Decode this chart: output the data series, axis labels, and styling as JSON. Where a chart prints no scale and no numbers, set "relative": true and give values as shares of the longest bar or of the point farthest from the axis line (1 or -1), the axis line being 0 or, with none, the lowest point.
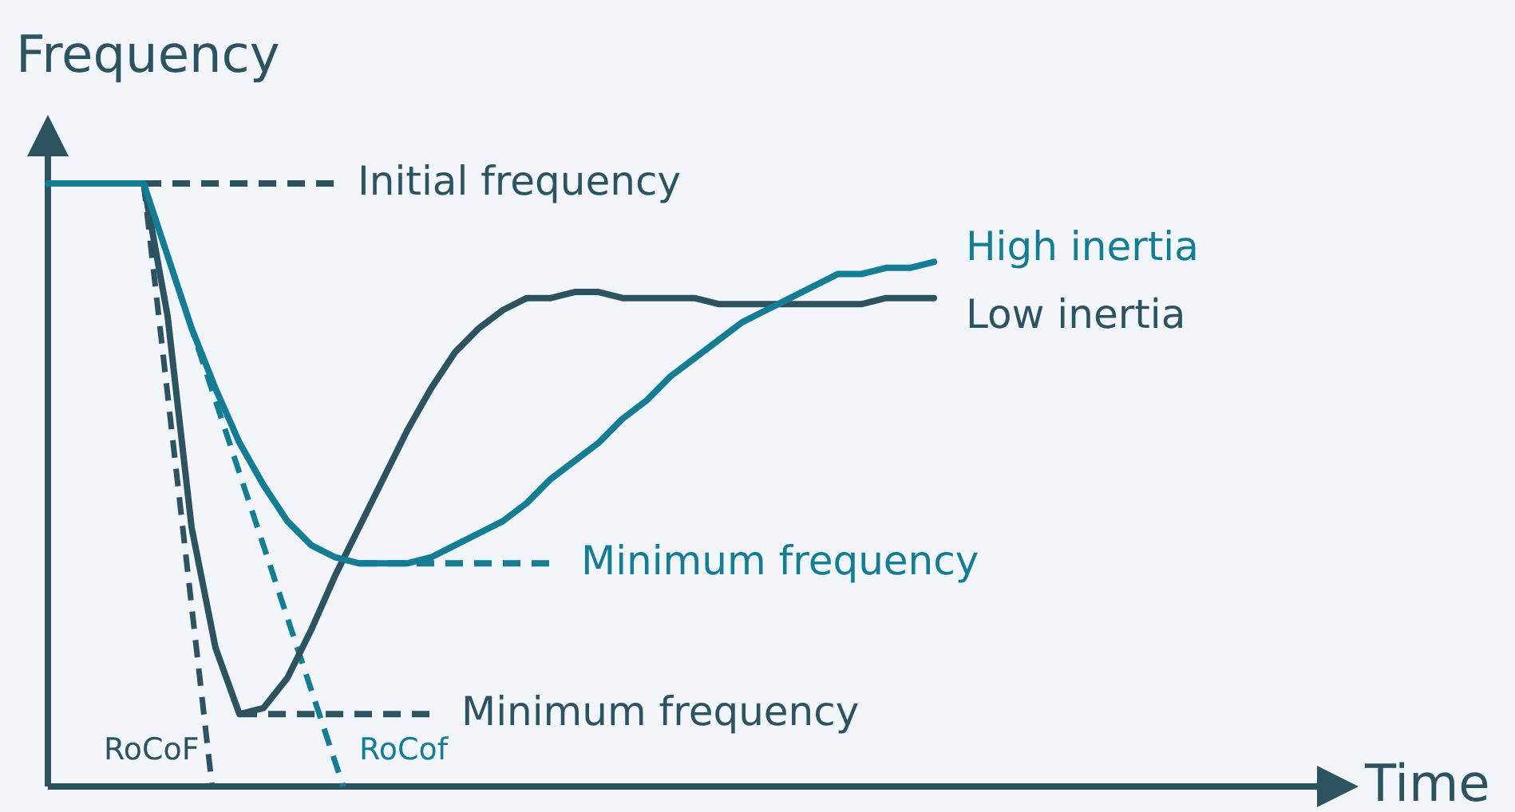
{
  "chart_data": {
    "type": "line",
    "relative": true,
    "ylabel": "Frequency",
    "categories": [
      null,
      null,
      null,
      null,
      null,
      null,
      null,
      null,
      null,
      null,
      null,
      null,
      null,
      null,
      null,
      null,
      null,
      null,
      null,
      null,
      null,
      null,
      null,
      null,
      null,
      null,
      null,
      null,
      null,
      null,
      null,
      null,
      null,
      null,
      null,
      null,
      null,
      null
    ],
    "series": [
      {
        "name": "High inertia",
        "color": "#147d93",
        "values": [
          1,
          1,
          1,
          1,
          1,
          0.88,
          0.76,
          0.66,
          0.57,
          0.5,
          0.44,
          0.4,
          0.38,
          0.37,
          0.37,
          0.37,
          0.38,
          0.4,
          0.42,
          0.44,
          0.47,
          0.51,
          0.54,
          0.57,
          0.61,
          0.64,
          0.68,
          0.71,
          0.74,
          0.77,
          0.79,
          0.81,
          0.83,
          0.85,
          0.85,
          0.86,
          0.86,
          0.87
        ]
      },
      {
        "name": "Low inertia",
        "color": "#2d5360",
        "values": [
          null,
          null,
          null,
          null,
          1,
          0.78,
          0.43,
          0.23,
          0.12,
          0.13,
          0.18,
          0.26,
          0.35,
          0.43,
          0.51,
          0.59,
          0.66,
          0.72,
          0.76,
          0.79,
          0.81,
          0.81,
          0.82,
          0.82,
          0.81,
          0.81,
          0.81,
          0.81,
          0.8,
          0.8,
          0.8,
          0.8,
          0.8,
          0.8,
          0.8,
          0.81,
          0.81,
          0.81
        ]
      }
    ],
    "ref_lines": [
      {
        "axis": "y",
        "value": 1,
        "label": "Initial frequency",
        "color": "#2d5360",
        "line_style": "dashed"
      },
      {
        "axis": "y",
        "value": 0.37,
        "label": "Minimum frequency",
        "color": "#147d93",
        "line_style": "dashed"
      },
      {
        "axis": "y",
        "value": 0.12,
        "label": "Minimum frequency",
        "color": "#2d5360",
        "line_style": "dashed"
      }
    ],
    "annotations": [
      "RoCoF",
      "RoCof",
      "Time"
    ]
  }
}
